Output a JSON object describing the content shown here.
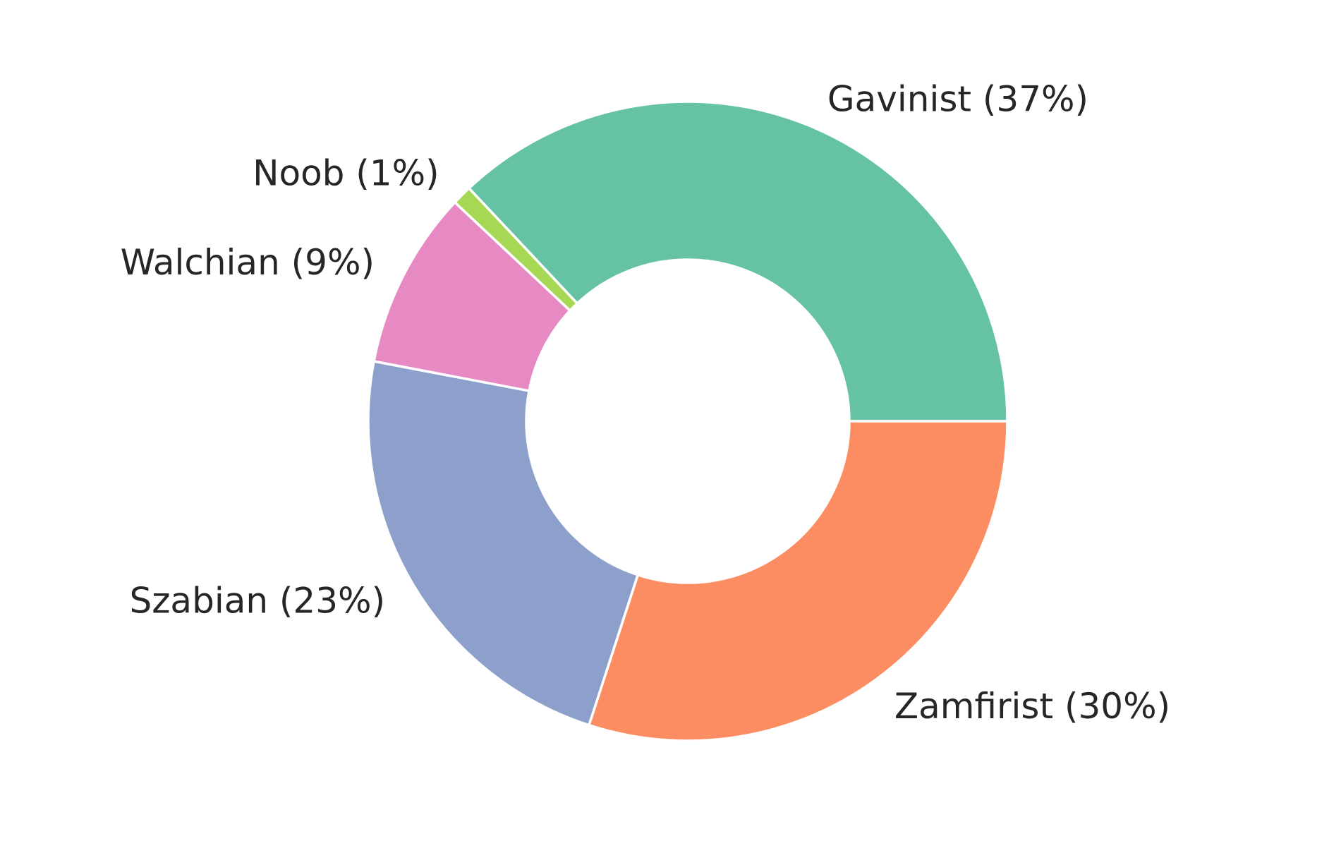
{
  "chart_data": {
    "type": "pie",
    "donut": true,
    "title": "",
    "labels": [
      "Gavinist",
      "Noob",
      "Walchian",
      "Szabian",
      "Zamfirist"
    ],
    "values": [
      37,
      1,
      9,
      23,
      30
    ],
    "slice_labels": [
      "Gavinist (37%)",
      "Noob (1%)",
      "Walchian (9%)",
      "Szabian (23%)",
      "Zamfirist (30%)"
    ],
    "colors": [
      "#66c2a5",
      "#a6d854",
      "#e78ac3",
      "#8da0cb",
      "#fc8d62"
    ],
    "edge_color": "#ffffff",
    "text_color": "#262626",
    "start_angle_deg": 0,
    "direction": "counterclockwise",
    "legend": "none"
  }
}
